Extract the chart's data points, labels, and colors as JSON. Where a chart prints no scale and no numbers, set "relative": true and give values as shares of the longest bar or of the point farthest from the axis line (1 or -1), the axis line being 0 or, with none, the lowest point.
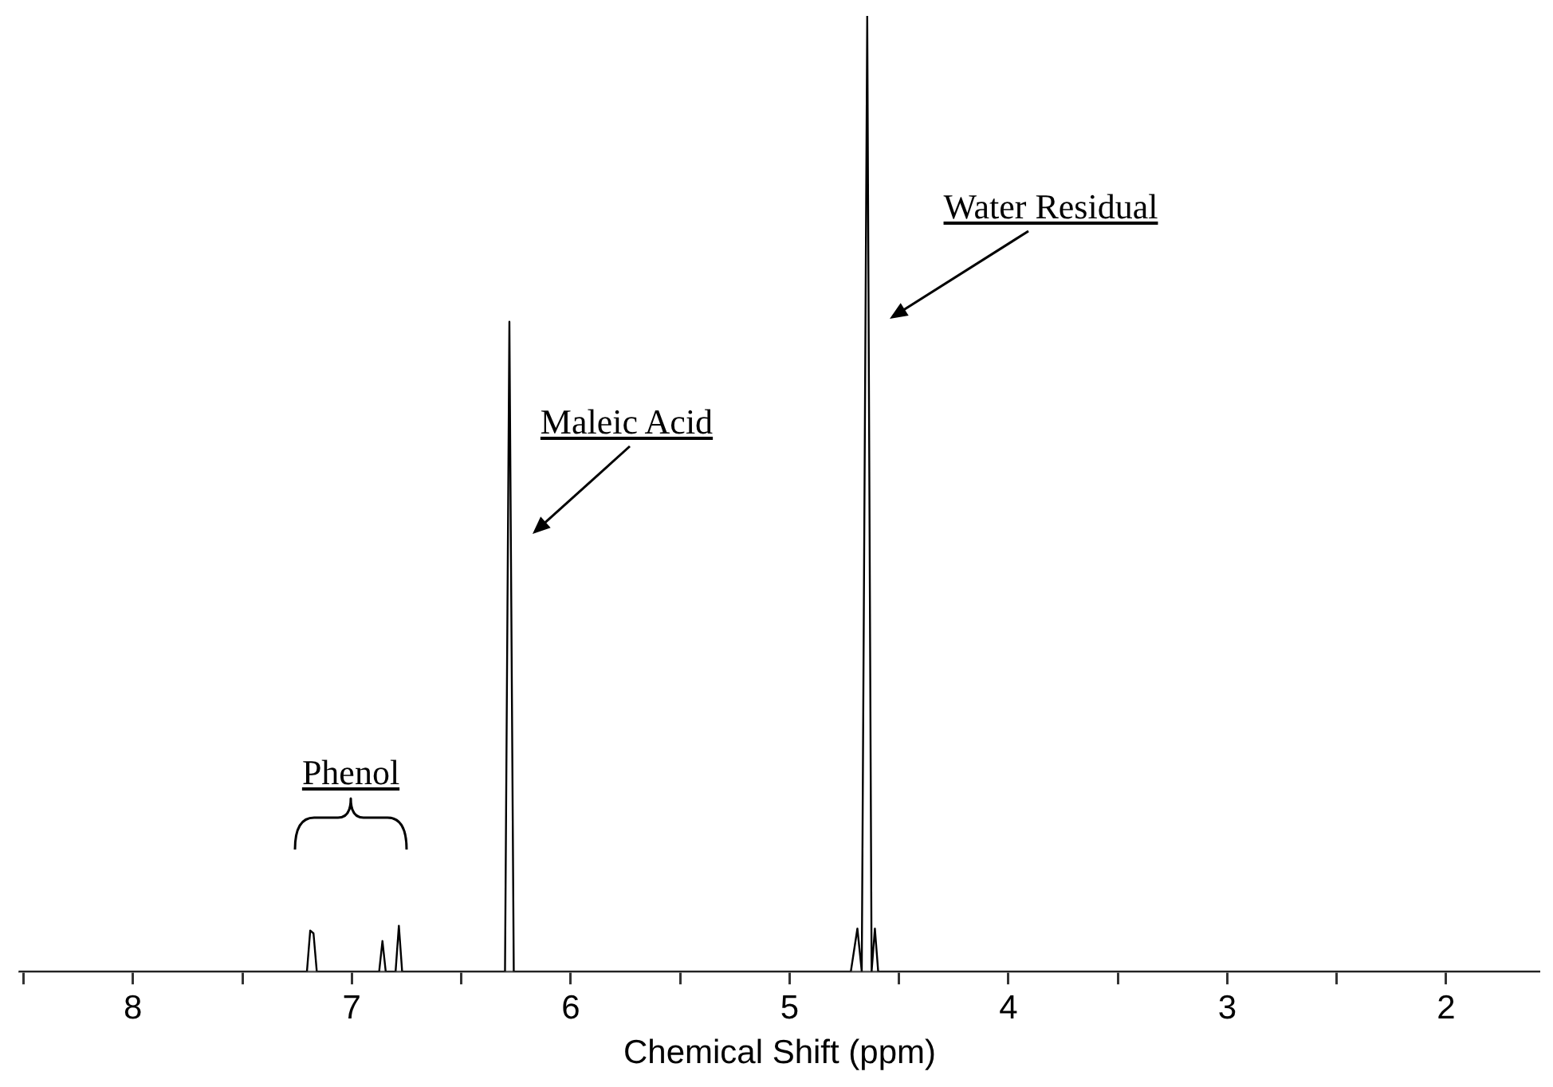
{
  "chart_data": {
    "type": "line",
    "relative": true,
    "xlabel": "Chemical Shift (ppm)",
    "xlim": [
      8.52,
      1.57
    ],
    "xticks": [
      {
        "value": 8.5,
        "label": null
      },
      8,
      {
        "value": 7.5,
        "label": null
      },
      7,
      {
        "value": 6.5,
        "label": null
      },
      6,
      {
        "value": 5.5,
        "label": null
      },
      5,
      {
        "value": 4.5,
        "label": null
      },
      4,
      {
        "value": 3.5,
        "label": null
      },
      3,
      {
        "value": 2.5,
        "label": null
      },
      2
    ],
    "grid": false,
    "legend": false,
    "marker": "none",
    "line_style": "solid",
    "series": [
      {
        "color": "#000000",
        "x": [
          8.52,
          7.205,
          7.19,
          7.175,
          7.16,
          6.875,
          6.86,
          6.845,
          6.8,
          6.785,
          6.77,
          6.3,
          6.28,
          6.26,
          4.72,
          4.69,
          4.67,
          4.645,
          4.625,
          4.61,
          4.595,
          1.57
        ],
        "values": [
          0,
          0,
          0.043,
          0.04,
          0,
          0,
          0.032,
          0,
          0,
          0.048,
          0,
          0,
          0.68,
          0,
          0,
          0.045,
          0,
          1,
          0,
          0.045,
          0,
          0
        ]
      }
    ],
    "annotations": [
      "Phenol",
      "Maleic Acid",
      "Water Residual"
    ]
  }
}
